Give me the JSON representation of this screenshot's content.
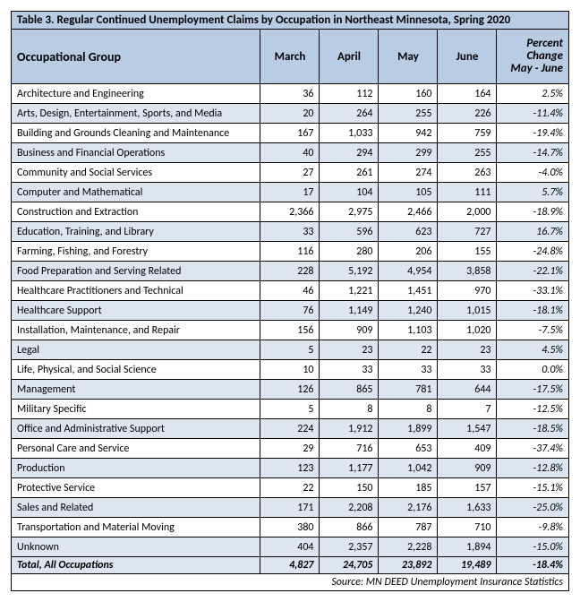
{
  "title": "Table 3. Regular Continued Unemployment Claims by Occupation in Northeast Minnesota, Spring 2020",
  "columns": [
    "Occupational Group",
    "March",
    "April",
    "May",
    "June",
    "Percent Change May - June"
  ],
  "rows": [
    {
      "occ": "Architecture and Engineering",
      "mar": "36",
      "apr": "112",
      "may": "160",
      "jun": "164",
      "pct": "2.5%"
    },
    {
      "occ": "Arts, Design, Entertainment, Sports, and Media",
      "mar": "20",
      "apr": "264",
      "may": "255",
      "jun": "226",
      "pct": "-11.4%"
    },
    {
      "occ": "Building and Grounds Cleaning and Maintenance",
      "mar": "167",
      "apr": "1,033",
      "may": "942",
      "jun": "759",
      "pct": "-19.4%"
    },
    {
      "occ": "Business and Financial Operations",
      "mar": "40",
      "apr": "294",
      "may": "299",
      "jun": "255",
      "pct": "-14.7%"
    },
    {
      "occ": "Community and Social Services",
      "mar": "27",
      "apr": "261",
      "may": "274",
      "jun": "263",
      "pct": "-4.0%"
    },
    {
      "occ": "Computer and Mathematical",
      "mar": "17",
      "apr": "104",
      "may": "105",
      "jun": "111",
      "pct": "5.7%"
    },
    {
      "occ": "Construction and Extraction",
      "mar": "2,366",
      "apr": "2,975",
      "may": "2,466",
      "jun": "2,000",
      "pct": "-18.9%"
    },
    {
      "occ": "Education, Training, and Library",
      "mar": "33",
      "apr": "596",
      "may": "623",
      "jun": "727",
      "pct": "16.7%"
    },
    {
      "occ": "Farming, Fishing, and Forestry",
      "mar": "116",
      "apr": "280",
      "may": "206",
      "jun": "155",
      "pct": "-24.8%"
    },
    {
      "occ": "Food Preparation and Serving Related",
      "mar": "228",
      "apr": "5,192",
      "may": "4,954",
      "jun": "3,858",
      "pct": "-22.1%"
    },
    {
      "occ": "Healthcare Practitioners and Technical",
      "mar": "46",
      "apr": "1,221",
      "may": "1,451",
      "jun": "970",
      "pct": "-33.1%"
    },
    {
      "occ": "Healthcare Support",
      "mar": "76",
      "apr": "1,149",
      "may": "1,240",
      "jun": "1,015",
      "pct": "-18.1%"
    },
    {
      "occ": "Installation, Maintenance, and Repair",
      "mar": "156",
      "apr": "909",
      "may": "1,103",
      "jun": "1,020",
      "pct": "-7.5%"
    },
    {
      "occ": "Legal",
      "mar": "5",
      "apr": "23",
      "may": "22",
      "jun": "23",
      "pct": "4.5%"
    },
    {
      "occ": "Life, Physical, and Social Science",
      "mar": "10",
      "apr": "33",
      "may": "33",
      "jun": "33",
      "pct": "0.0%"
    },
    {
      "occ": "Management",
      "mar": "126",
      "apr": "865",
      "may": "781",
      "jun": "644",
      "pct": "-17.5%"
    },
    {
      "occ": "Military Specific",
      "mar": "5",
      "apr": "8",
      "may": "8",
      "jun": "7",
      "pct": "-12.5%"
    },
    {
      "occ": "Office and Administrative Support",
      "mar": "224",
      "apr": "1,912",
      "may": "1,899",
      "jun": "1,547",
      "pct": "-18.5%"
    },
    {
      "occ": "Personal Care and Service",
      "mar": "29",
      "apr": "716",
      "may": "653",
      "jun": "409",
      "pct": "-37.4%"
    },
    {
      "occ": "Production",
      "mar": "123",
      "apr": "1,177",
      "may": "1,042",
      "jun": "909",
      "pct": "-12.8%"
    },
    {
      "occ": "Protective Service",
      "mar": "22",
      "apr": "150",
      "may": "185",
      "jun": "157",
      "pct": "-15.1%"
    },
    {
      "occ": "Sales and Related",
      "mar": "171",
      "apr": "2,208",
      "may": "2,176",
      "jun": "1,633",
      "pct": "-25.0%"
    },
    {
      "occ": "Transportation and Material Moving",
      "mar": "380",
      "apr": "866",
      "may": "787",
      "jun": "710",
      "pct": "-9.8%"
    },
    {
      "occ": "Unknown",
      "mar": "404",
      "apr": "2,357",
      "may": "2,228",
      "jun": "1,894",
      "pct": "-15.0%"
    }
  ],
  "total": {
    "occ": "Total, All Occupations",
    "mar": "4,827",
    "apr": "24,705",
    "may": "23,892",
    "jun": "19,489",
    "pct": "-18.4%"
  },
  "source": "Source: MN DEED Unemployment Insurance Statistics",
  "styling": {
    "header_bg": "#b8cce4",
    "row_even_bg": "#dce6f1",
    "row_odd_bg": "#ffffff",
    "border_color": "#000000",
    "font_family": "Calibri",
    "title_fontsize": 13,
    "body_fontsize": 12
  }
}
